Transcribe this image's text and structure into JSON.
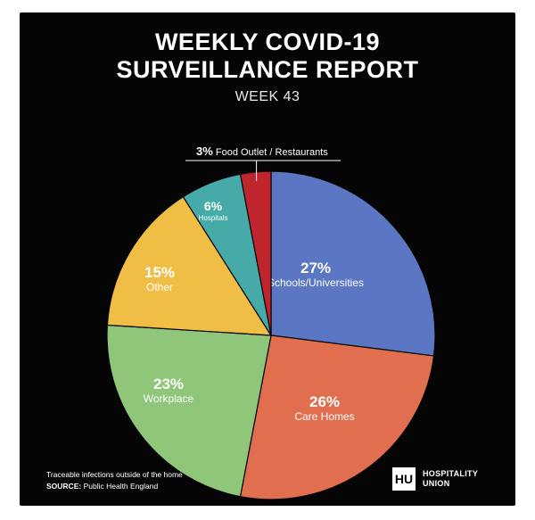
{
  "header": {
    "title_line1": "WEEKLY COVID-19",
    "title_line2": "SURVEILLANCE REPORT",
    "subtitle": "WEEK 43"
  },
  "chart_data": {
    "type": "pie",
    "start_angle_deg": 0,
    "direction": "clockwise",
    "slices": [
      {
        "label": "Schools/Universities",
        "pct_label": "27%",
        "value": 27,
        "color": "#5b76c2"
      },
      {
        "label": "Care Homes",
        "pct_label": "26%",
        "value": 26,
        "color": "#e26e50"
      },
      {
        "label": "Workplace",
        "pct_label": "23%",
        "value": 23,
        "color": "#8fc67a"
      },
      {
        "label": "Other",
        "pct_label": "15%",
        "value": 15,
        "color": "#f0bd45"
      },
      {
        "label": "Hospitals",
        "pct_label": "6%",
        "value": 6,
        "color": "#46aba8"
      },
      {
        "label": "Food Outlet / Restaurants",
        "pct_label": "3%",
        "value": 3,
        "color": "#c0242c"
      }
    ]
  },
  "footer": {
    "note": "Traceable infections outside of the home",
    "source_label": "SOURCE:",
    "source_value": "Public Health England",
    "logo_mark": "HU",
    "logo_line1": "HOSPITALITY",
    "logo_line2": "UNION"
  }
}
